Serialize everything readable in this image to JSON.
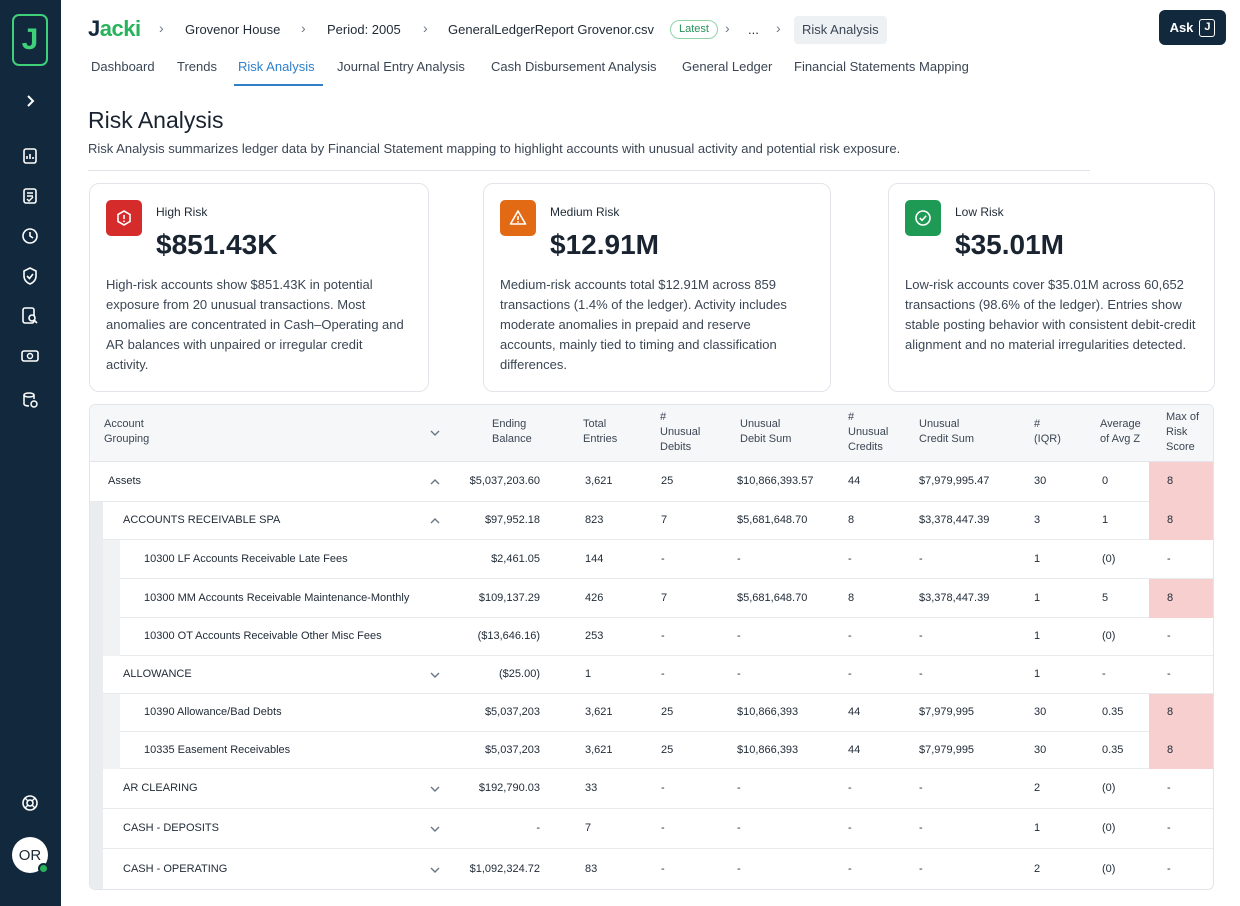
{
  "brand": {
    "name_dark": "J",
    "name_light": "acki"
  },
  "sidebar": {
    "avatar_initials": "OR"
  },
  "breadcrumb": {
    "client": "Grovenor House",
    "period": "Period: 2005",
    "file": "GeneralLedgerReport Grovenor.csv",
    "badge": "Latest",
    "ellipsis": "...",
    "current": "Risk Analysis"
  },
  "ask": {
    "label": "Ask",
    "icon_letter": "J"
  },
  "tabs": [
    {
      "label": "Dashboard"
    },
    {
      "label": "Trends"
    },
    {
      "label": "Risk Analysis",
      "active": true
    },
    {
      "label": "Journal Entry Analysis"
    },
    {
      "label": "Cash Disbursement Analysis"
    },
    {
      "label": "General Ledger"
    },
    {
      "label": "Financial Statements Mapping"
    }
  ],
  "page": {
    "title": "Risk Analysis",
    "description": "Risk Analysis summarizes ledger data by Financial Statement mapping to highlight accounts with unusual activity and potential risk exposure."
  },
  "cards": [
    {
      "label": "High Risk",
      "value": "$851.43K",
      "color": "#d62b2b",
      "icon": "hexagon-alert-icon",
      "lines": [
        "High-risk accounts show $851.43K in potential",
        "exposure from 20 unusual transactions. Most",
        "anomalies are concentrated in Cash–Operating and",
        "AR balances with unpaired or irregular credit",
        "activity."
      ]
    },
    {
      "label": "Medium Risk",
      "value": "$12.91M",
      "color": "#e36a14",
      "icon": "warning-triangle-icon",
      "lines": [
        "Medium-risk accounts total $12.91M across 859",
        "transactions (1.4% of the ledger). Activity includes",
        "moderate anomalies in prepaid and reserve",
        "accounts, mainly tied to timing and classification",
        "differences."
      ]
    },
    {
      "label": "Low Risk",
      "value": "$35.01M",
      "color": "#1f9a55",
      "icon": "check-circle-icon",
      "lines": [
        "Low-risk accounts cover $35.01M across 60,652",
        "transactions (98.6% of the ledger). Entries show",
        "stable posting behavior with consistent debit-credit",
        "alignment and no material irregularities detected."
      ]
    }
  ],
  "table": {
    "headers": {
      "account": [
        "Account",
        "Grouping"
      ],
      "ending": [
        "Ending",
        "Balance"
      ],
      "total": [
        "Total",
        "Entries"
      ],
      "unusual_debits": [
        "#",
        "Unusual",
        "Debits"
      ],
      "unusual_debit_sum": [
        "Unusual",
        "Debit Sum"
      ],
      "unusual_credits": [
        "#",
        "Unusual",
        "Credits"
      ],
      "unusual_credit_sum": [
        "Unusual",
        "Credit Sum"
      ],
      "iqr": [
        "#",
        "(IQR)"
      ],
      "avg_z": [
        "Average",
        "of Avg Z"
      ],
      "max_risk": [
        "Max of",
        "Risk",
        "Score"
      ]
    },
    "rows": [
      {
        "name": "Assets",
        "level": 0,
        "chevron": "up",
        "ending": "$5,037,203.60",
        "total": "3,621",
        "ud": "25",
        "uds": "$10,866,393.57",
        "uc": "44",
        "ucs": "$7,979,995.47",
        "iqr": "30",
        "avgz": "0",
        "risk": "8",
        "hot": true
      },
      {
        "name": "ACCOUNTS RECEIVABLE SPA",
        "level": 1,
        "chevron": "up",
        "ending": "$97,952.18",
        "total": "823",
        "ud": "7",
        "uds": "$5,681,648.70",
        "uc": "8",
        "ucs": "$3,378,447.39",
        "iqr": "3",
        "avgz": "1",
        "risk": "8",
        "hot": true
      },
      {
        "name": "10300 LF Accounts Receivable Late Fees",
        "level": 2,
        "chevron": "",
        "ending": "$2,461.05",
        "total": "144",
        "ud": "-",
        "uds": "-",
        "uc": "-",
        "ucs": "-",
        "iqr": "1",
        "avgz": "(0)",
        "risk": "-",
        "hot": false
      },
      {
        "name": "10300 MM Accounts Receivable Maintenance-Monthly",
        "level": 2,
        "chevron": "",
        "ending": "$109,137.29",
        "total": "426",
        "ud": "7",
        "uds": "$5,681,648.70",
        "uc": "8",
        "ucs": "$3,378,447.39",
        "iqr": "1",
        "avgz": "5",
        "risk": "8",
        "hot": true
      },
      {
        "name": "10300 OT Accounts Receivable Other Misc Fees",
        "level": 2,
        "chevron": "",
        "ending": "($13,646.16)",
        "total": "253",
        "ud": "-",
        "uds": "-",
        "uc": "-",
        "ucs": "-",
        "iqr": "1",
        "avgz": "(0)",
        "risk": "-",
        "hot": false
      },
      {
        "name": "ALLOWANCE",
        "level": 1,
        "chevron": "down",
        "ending": "($25.00)",
        "total": "1",
        "ud": "-",
        "uds": "-",
        "uc": "-",
        "ucs": "-",
        "iqr": "1",
        "avgz": "-",
        "risk": "-",
        "hot": false
      },
      {
        "name": "10390 Allowance/Bad Debts",
        "level": 2,
        "chevron": "",
        "ending": "$5,037,203",
        "total": "3,621",
        "ud": "25",
        "uds": "$10,866,393",
        "uc": "44",
        "ucs": "$7,979,995",
        "iqr": "30",
        "avgz": "0.35",
        "risk": "8",
        "hot": true
      },
      {
        "name": "10335 Easement Receivables",
        "level": 2,
        "chevron": "",
        "ending": "$5,037,203",
        "total": "3,621",
        "ud": "25",
        "uds": "$10,866,393",
        "uc": "44",
        "ucs": "$7,979,995",
        "iqr": "30",
        "avgz": "0.35",
        "risk": "8",
        "hot": true
      },
      {
        "name": "AR CLEARING",
        "level": 1,
        "chevron": "down",
        "ending": "$192,790.03",
        "total": "33",
        "ud": "-",
        "uds": "-",
        "uc": "-",
        "ucs": "-",
        "iqr": "2",
        "avgz": "(0)",
        "risk": "-",
        "hot": false
      },
      {
        "name": "CASH - DEPOSITS",
        "level": 1,
        "chevron": "down",
        "ending": "-",
        "total": "7",
        "ud": "-",
        "uds": "-",
        "uc": "-",
        "ucs": "-",
        "iqr": "1",
        "avgz": "(0)",
        "risk": "-",
        "hot": false
      },
      {
        "name": "CASH - OPERATING",
        "level": 1,
        "chevron": "down",
        "ending": "$1,092,324.72",
        "total": "83",
        "ud": "-",
        "uds": "-",
        "uc": "-",
        "ucs": "-",
        "iqr": "2",
        "avgz": "(0)",
        "risk": "-",
        "hot": false
      }
    ]
  }
}
